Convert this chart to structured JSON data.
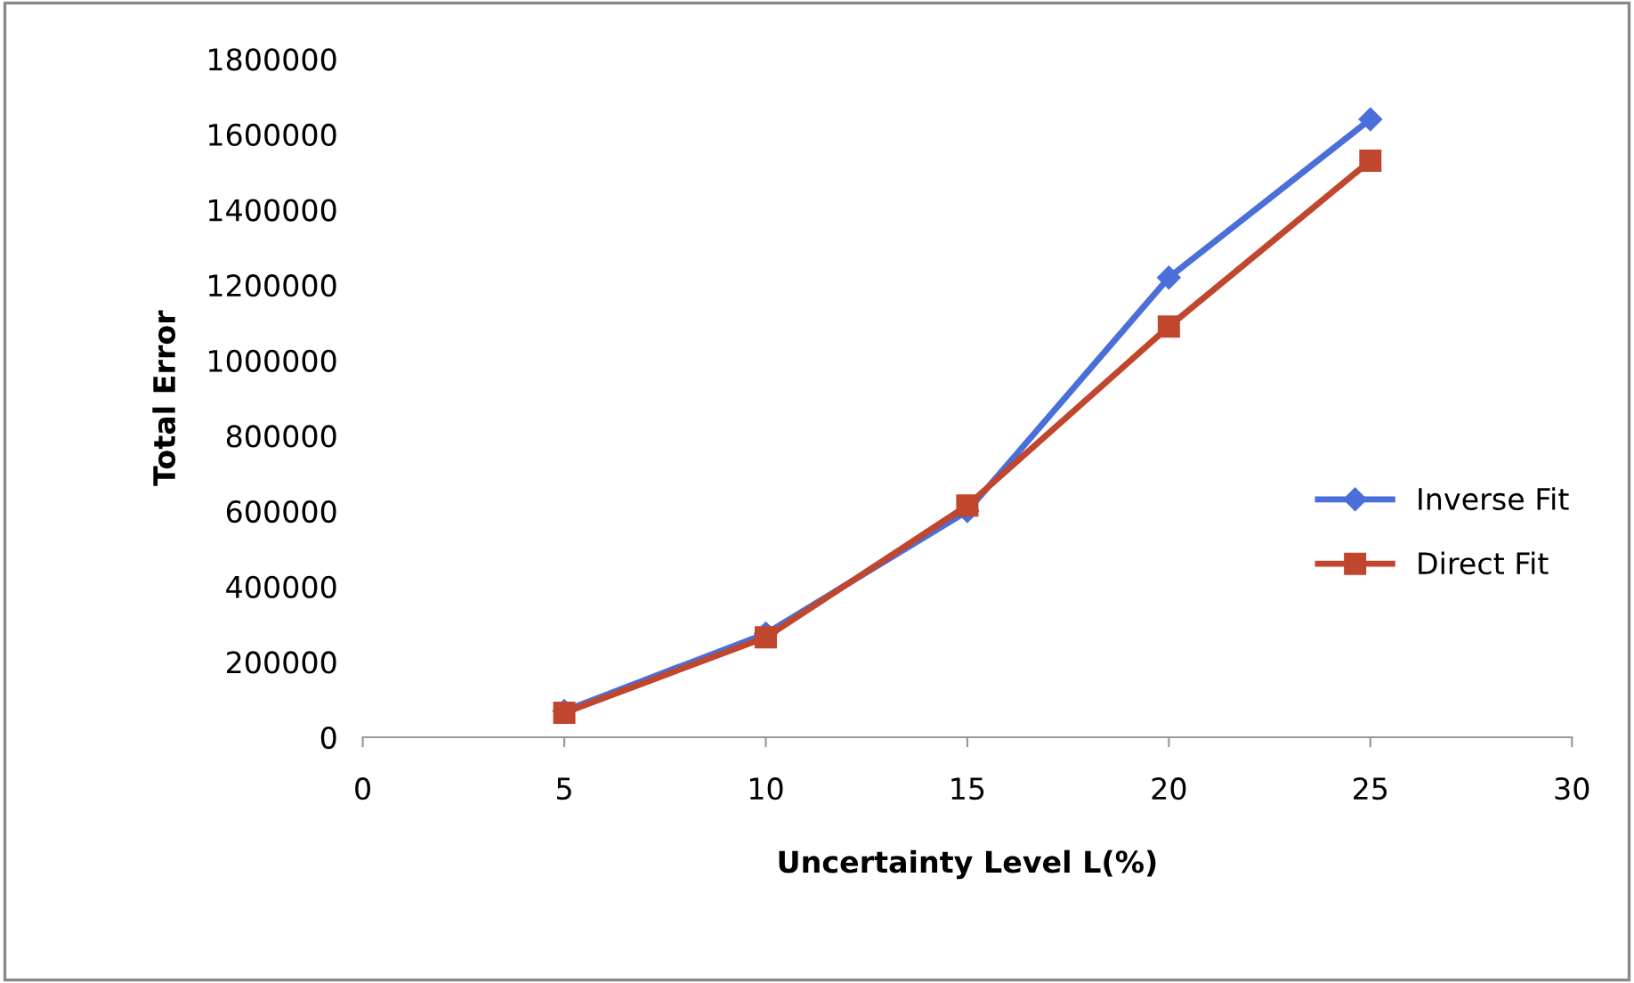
{
  "chart_data": {
    "type": "line",
    "xlabel": "Uncertainty Level L(%)",
    "ylabel": "Total Error",
    "x": [
      5,
      10,
      15,
      20,
      25
    ],
    "series": [
      {
        "name": "Inverse Fit",
        "color": "#4a6fd8",
        "marker": "diamond",
        "values": [
          70000,
          275000,
          600000,
          1220000,
          1640000
        ]
      },
      {
        "name": "Direct Fit",
        "color": "#c0462e",
        "marker": "square",
        "values": [
          65000,
          265000,
          615000,
          1090000,
          1530000
        ]
      }
    ],
    "xlim": [
      0,
      30
    ],
    "xticks": [
      0,
      5,
      10,
      15,
      20,
      25,
      30
    ],
    "ylim": [
      0,
      1800000
    ],
    "yticks": [
      0,
      200000,
      400000,
      600000,
      800000,
      1000000,
      1200000,
      1400000,
      1600000,
      1800000
    ],
    "grid": false,
    "legend": "right",
    "line_style": "solid"
  }
}
